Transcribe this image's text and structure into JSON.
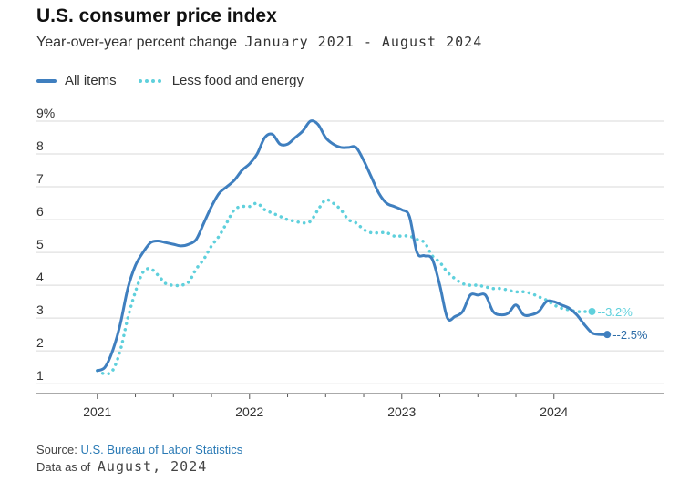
{
  "colors": {
    "all_items": "#3f7fbf",
    "core": "#5fd0dc",
    "grid": "#d9d9d9",
    "axis": "#555555"
  },
  "header": {
    "title": "U.S. consumer price index",
    "subtitle_text": "Year-over-year percent change",
    "subtitle_range": "January 2021 - August 2024"
  },
  "footer": {
    "source_label": "Source:",
    "source_name": "U.S. Bureau of Labor Statistics",
    "asof_label": "Data as of",
    "asof_date": "August, 2024"
  },
  "chart_data": {
    "type": "line",
    "title": "U.S. consumer price index",
    "y_tick_labels": [
      "1",
      "2",
      "3",
      "4",
      "5",
      "6",
      "7",
      "8",
      "9%"
    ],
    "y_ticks": [
      1,
      2,
      3,
      4,
      5,
      6,
      7,
      8,
      9
    ],
    "ylim": [
      0.7,
      9.5
    ],
    "x_tick_labels": [
      "2021",
      "2022",
      "2023",
      "2024"
    ],
    "x_ticks": [
      2021,
      2022,
      2023,
      2024
    ],
    "xlim": [
      2020.6,
      2024.72
    ],
    "grid": "horizontal",
    "legend_position": "top-left",
    "series": [
      {
        "name": "All items",
        "style": "solid",
        "end_label": "--2.5%",
        "points": [
          [
            2021.0,
            1.4
          ],
          [
            2021.05,
            1.5
          ],
          [
            2021.1,
            2.0
          ],
          [
            2021.15,
            2.8
          ],
          [
            2021.2,
            3.9
          ],
          [
            2021.25,
            4.6
          ],
          [
            2021.3,
            5.0
          ],
          [
            2021.35,
            5.3
          ],
          [
            2021.4,
            5.35
          ],
          [
            2021.45,
            5.3
          ],
          [
            2021.5,
            5.25
          ],
          [
            2021.55,
            5.2
          ],
          [
            2021.6,
            5.25
          ],
          [
            2021.65,
            5.4
          ],
          [
            2021.7,
            5.9
          ],
          [
            2021.75,
            6.4
          ],
          [
            2021.8,
            6.8
          ],
          [
            2021.85,
            7.0
          ],
          [
            2021.9,
            7.2
          ],
          [
            2021.95,
            7.5
          ],
          [
            2022.0,
            7.7
          ],
          [
            2022.05,
            8.0
          ],
          [
            2022.1,
            8.5
          ],
          [
            2022.15,
            8.6
          ],
          [
            2022.2,
            8.3
          ],
          [
            2022.25,
            8.3
          ],
          [
            2022.3,
            8.5
          ],
          [
            2022.35,
            8.7
          ],
          [
            2022.4,
            9.0
          ],
          [
            2022.45,
            8.9
          ],
          [
            2022.5,
            8.5
          ],
          [
            2022.55,
            8.3
          ],
          [
            2022.6,
            8.2
          ],
          [
            2022.65,
            8.2
          ],
          [
            2022.7,
            8.2
          ],
          [
            2022.75,
            7.8
          ],
          [
            2022.8,
            7.3
          ],
          [
            2022.85,
            6.8
          ],
          [
            2022.9,
            6.5
          ],
          [
            2022.95,
            6.4
          ],
          [
            2023.0,
            6.3
          ],
          [
            2023.05,
            6.1
          ],
          [
            2023.1,
            5.0
          ],
          [
            2023.15,
            4.9
          ],
          [
            2023.2,
            4.8
          ],
          [
            2023.25,
            4.0
          ],
          [
            2023.3,
            3.0
          ],
          [
            2023.35,
            3.05
          ],
          [
            2023.4,
            3.2
          ],
          [
            2023.45,
            3.7
          ],
          [
            2023.5,
            3.7
          ],
          [
            2023.55,
            3.7
          ],
          [
            2023.6,
            3.2
          ],
          [
            2023.65,
            3.1
          ],
          [
            2023.7,
            3.15
          ],
          [
            2023.75,
            3.4
          ],
          [
            2023.8,
            3.1
          ],
          [
            2023.85,
            3.1
          ],
          [
            2023.9,
            3.2
          ],
          [
            2023.95,
            3.5
          ],
          [
            2024.0,
            3.5
          ],
          [
            2024.05,
            3.4
          ],
          [
            2024.1,
            3.3
          ],
          [
            2024.15,
            3.1
          ],
          [
            2024.2,
            2.8
          ],
          [
            2024.25,
            2.55
          ],
          [
            2024.3,
            2.5
          ],
          [
            2024.35,
            2.5
          ]
        ]
      },
      {
        "name": "Less food and energy",
        "style": "dotted",
        "end_label": "--3.2%",
        "points": [
          [
            2021.0,
            1.4
          ],
          [
            2021.05,
            1.3
          ],
          [
            2021.1,
            1.4
          ],
          [
            2021.15,
            2.0
          ],
          [
            2021.2,
            3.0
          ],
          [
            2021.25,
            3.8
          ],
          [
            2021.3,
            4.4
          ],
          [
            2021.35,
            4.5
          ],
          [
            2021.4,
            4.3
          ],
          [
            2021.45,
            4.05
          ],
          [
            2021.5,
            4.0
          ],
          [
            2021.55,
            4.0
          ],
          [
            2021.6,
            4.1
          ],
          [
            2021.65,
            4.5
          ],
          [
            2021.7,
            4.8
          ],
          [
            2021.75,
            5.2
          ],
          [
            2021.8,
            5.5
          ],
          [
            2021.85,
            5.9
          ],
          [
            2021.9,
            6.3
          ],
          [
            2021.95,
            6.4
          ],
          [
            2022.0,
            6.4
          ],
          [
            2022.05,
            6.5
          ],
          [
            2022.1,
            6.3
          ],
          [
            2022.15,
            6.2
          ],
          [
            2022.2,
            6.1
          ],
          [
            2022.25,
            6.0
          ],
          [
            2022.3,
            5.95
          ],
          [
            2022.35,
            5.9
          ],
          [
            2022.4,
            5.95
          ],
          [
            2022.45,
            6.3
          ],
          [
            2022.5,
            6.6
          ],
          [
            2022.55,
            6.5
          ],
          [
            2022.6,
            6.3
          ],
          [
            2022.65,
            6.0
          ],
          [
            2022.7,
            5.9
          ],
          [
            2022.75,
            5.7
          ],
          [
            2022.8,
            5.6
          ],
          [
            2022.85,
            5.6
          ],
          [
            2022.9,
            5.6
          ],
          [
            2022.95,
            5.5
          ],
          [
            2023.0,
            5.5
          ],
          [
            2023.05,
            5.5
          ],
          [
            2023.1,
            5.4
          ],
          [
            2023.15,
            5.3
          ],
          [
            2023.2,
            4.9
          ],
          [
            2023.25,
            4.7
          ],
          [
            2023.3,
            4.4
          ],
          [
            2023.35,
            4.2
          ],
          [
            2023.4,
            4.05
          ],
          [
            2023.45,
            4.0
          ],
          [
            2023.5,
            4.0
          ],
          [
            2023.55,
            3.95
          ],
          [
            2023.6,
            3.9
          ],
          [
            2023.65,
            3.9
          ],
          [
            2023.7,
            3.85
          ],
          [
            2023.75,
            3.8
          ],
          [
            2023.8,
            3.8
          ],
          [
            2023.85,
            3.75
          ],
          [
            2023.9,
            3.65
          ],
          [
            2023.95,
            3.55
          ],
          [
            2024.0,
            3.4
          ],
          [
            2024.05,
            3.3
          ],
          [
            2024.1,
            3.25
          ],
          [
            2024.15,
            3.2
          ],
          [
            2024.2,
            3.2
          ],
          [
            2024.25,
            3.2
          ]
        ]
      }
    ]
  }
}
